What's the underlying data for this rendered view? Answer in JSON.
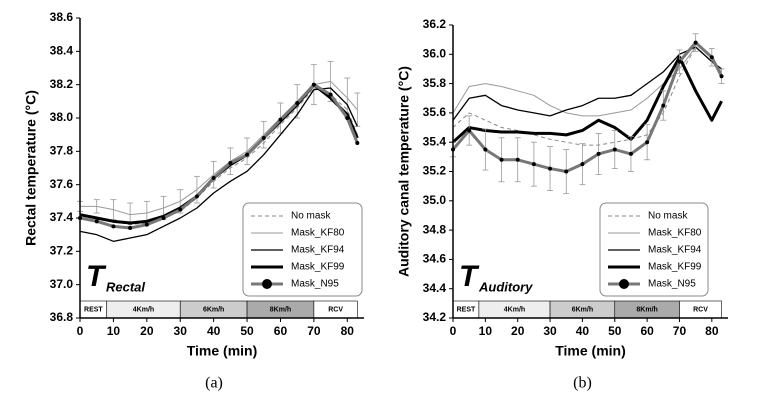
{
  "chart_data": [
    {
      "type": "line",
      "y_label": "Rectal temperature (°C)",
      "x_label": "Time (min)",
      "caption": "(a)",
      "annotation": {
        "main": "T",
        "sub": "Rectal"
      },
      "xlim": [
        0,
        85
      ],
      "xticks": [
        0,
        10,
        20,
        30,
        40,
        50,
        60,
        70,
        80
      ],
      "ylim": [
        36.8,
        38.6
      ],
      "yticks": [
        36.8,
        {
          "value": 37,
          "label": "37.0"
        },
        37.2,
        37.4,
        37.6,
        37.8,
        {
          "value": 38,
          "label": "38.0"
        },
        38.2,
        38.4,
        38.6
      ],
      "phases": [
        {
          "label": "REST",
          "start": 0,
          "end": 8,
          "color": "#ffffff"
        },
        {
          "label": "4Km/h",
          "start": 8,
          "end": 30,
          "color": "#eeeeee"
        },
        {
          "label": "6Km/h",
          "start": 30,
          "end": 50,
          "color": "#cccccc"
        },
        {
          "label": "8Km/h",
          "start": 50,
          "end": 70,
          "color": "#aaaaaa"
        },
        {
          "label": "RCV",
          "start": 70,
          "end": 83,
          "color": "#ffffff"
        }
      ],
      "x": [
        0,
        5,
        10,
        15,
        20,
        25,
        30,
        35,
        40,
        45,
        50,
        55,
        60,
        65,
        70,
        75,
        80,
        83
      ],
      "series": [
        {
          "name": "No mask",
          "color": "#888888",
          "width": 1,
          "dash": "4 3",
          "values": [
            37.42,
            37.4,
            37.38,
            37.36,
            37.37,
            37.4,
            37.44,
            37.52,
            37.62,
            37.7,
            37.76,
            37.85,
            37.96,
            38.06,
            38.18,
            38.14,
            38.05,
            37.9
          ]
        },
        {
          "name": "Mask_KF80",
          "color": "#999999",
          "width": 1,
          "values": [
            37.47,
            37.47,
            37.45,
            37.42,
            37.43,
            37.46,
            37.5,
            37.57,
            37.66,
            37.74,
            37.8,
            37.9,
            38.0,
            38.1,
            38.2,
            38.22,
            38.12,
            38.05
          ],
          "errors": [
            0.03,
            0.04,
            0.06,
            0.07,
            0.07,
            0.07,
            0.07,
            0.08,
            0.08,
            0.08,
            0.08,
            0.08,
            0.09,
            0.1,
            0.12,
            0.12,
            0.12,
            0.1
          ]
        },
        {
          "name": "Mask_KF94",
          "color": "#000000",
          "width": 1.3,
          "values": [
            37.32,
            37.3,
            37.26,
            37.28,
            37.3,
            37.35,
            37.4,
            37.46,
            37.55,
            37.62,
            37.68,
            37.78,
            37.9,
            38.02,
            38.17,
            38.18,
            38.08,
            37.95
          ]
        },
        {
          "name": "Mask_KF99",
          "color": "#000000",
          "width": 3,
          "values": [
            37.42,
            37.4,
            37.38,
            37.37,
            37.38,
            37.41,
            37.46,
            37.53,
            37.64,
            37.72,
            37.78,
            37.88,
            37.98,
            38.08,
            38.2,
            38.12,
            38.02,
            37.88
          ]
        },
        {
          "name": "Mask_N95",
          "color": "#777777",
          "width": 3,
          "marker": true,
          "values": [
            37.4,
            37.38,
            37.35,
            37.34,
            37.36,
            37.4,
            37.45,
            37.53,
            37.64,
            37.73,
            37.78,
            37.88,
            37.99,
            38.09,
            38.2,
            38.14,
            38.0,
            37.85
          ]
        }
      ]
    },
    {
      "type": "line",
      "y_label": "Auditory canal temperature (°C)",
      "x_label": "Time (min)",
      "caption": "(b)",
      "annotation": {
        "main": "T",
        "sub": "Auditory"
      },
      "xlim": [
        0,
        85
      ],
      "xticks": [
        0,
        10,
        20,
        30,
        40,
        50,
        60,
        70,
        80
      ],
      "ylim": [
        34.2,
        36.2
      ],
      "yticks": [
        34.2,
        34.4,
        34.6,
        34.8,
        {
          "value": 35,
          "label": "35.0"
        },
        35.2,
        35.4,
        35.6,
        35.8,
        {
          "value": 36,
          "label": "36.0"
        },
        36.2
      ],
      "phases": [
        {
          "label": "REST",
          "start": 0,
          "end": 8,
          "color": "#ffffff"
        },
        {
          "label": "4Km/h",
          "start": 8,
          "end": 30,
          "color": "#eeeeee"
        },
        {
          "label": "6Km/h",
          "start": 30,
          "end": 50,
          "color": "#cccccc"
        },
        {
          "label": "8Km/h",
          "start": 50,
          "end": 70,
          "color": "#aaaaaa"
        },
        {
          "label": "RCV",
          "start": 70,
          "end": 83,
          "color": "#ffffff"
        }
      ],
      "x": [
        0,
        5,
        10,
        15,
        20,
        25,
        30,
        35,
        40,
        45,
        50,
        55,
        60,
        65,
        70,
        75,
        80,
        83
      ],
      "series": [
        {
          "name": "No mask",
          "color": "#888888",
          "width": 1,
          "dash": "4 3",
          "values": [
            35.5,
            35.6,
            35.55,
            35.5,
            35.48,
            35.45,
            35.42,
            35.4,
            35.38,
            35.38,
            35.4,
            35.42,
            35.45,
            35.6,
            35.85,
            36.05,
            35.95,
            35.88
          ]
        },
        {
          "name": "Mask_KF80",
          "color": "#999999",
          "width": 1,
          "values": [
            35.6,
            35.78,
            35.8,
            35.78,
            35.75,
            35.72,
            35.65,
            35.6,
            35.58,
            35.58,
            35.6,
            35.62,
            35.7,
            35.8,
            35.9,
            36.05,
            35.95,
            35.88
          ]
        },
        {
          "name": "Mask_KF94",
          "color": "#000000",
          "width": 1.3,
          "values": [
            35.55,
            35.7,
            35.72,
            35.65,
            35.62,
            35.6,
            35.58,
            35.62,
            35.65,
            35.7,
            35.7,
            35.72,
            35.8,
            35.88,
            36.0,
            36.05,
            35.95,
            35.9
          ]
        },
        {
          "name": "Mask_KF99",
          "color": "#000000",
          "width": 3,
          "values": [
            35.4,
            35.5,
            35.48,
            35.47,
            35.47,
            35.46,
            35.46,
            35.45,
            35.48,
            35.55,
            35.5,
            35.42,
            35.55,
            35.78,
            35.98,
            35.75,
            35.55,
            35.68
          ]
        },
        {
          "name": "Mask_N95",
          "color": "#777777",
          "width": 3,
          "marker": true,
          "values": [
            35.35,
            35.48,
            35.35,
            35.28,
            35.28,
            35.25,
            35.22,
            35.2,
            35.25,
            35.32,
            35.35,
            35.32,
            35.4,
            35.65,
            35.95,
            36.08,
            35.98,
            35.85
          ],
          "errors": [
            0.05,
            0.1,
            0.14,
            0.15,
            0.15,
            0.15,
            0.15,
            0.15,
            0.14,
            0.14,
            0.13,
            0.12,
            0.12,
            0.1,
            0.08,
            0.06,
            0.06,
            0.05
          ]
        }
      ]
    }
  ]
}
